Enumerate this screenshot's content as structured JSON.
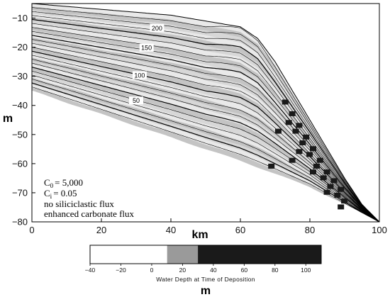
{
  "chart_data": {
    "type": "area",
    "title": "",
    "xlabel": "km",
    "ylabel": "m",
    "xlim": [
      0,
      100
    ],
    "ylim": [
      -80,
      -5
    ],
    "xticks": [
      "0",
      "20",
      "40",
      "60",
      "80",
      "100"
    ],
    "yticks": [
      "-10",
      "-20",
      "-30",
      "-40",
      "-50",
      "-60",
      "-70",
      "-80"
    ],
    "grid": false,
    "time_line_labels": [
      "200",
      "150",
      "100",
      "50"
    ],
    "surface": {
      "x": [
        0,
        10,
        20,
        30,
        40,
        45,
        50,
        55,
        60,
        65,
        70,
        75,
        80,
        85,
        90,
        95,
        100
      ],
      "y": [
        -5,
        -6,
        -7,
        -8,
        -9,
        -10,
        -11,
        -12,
        -13,
        -17,
        -25,
        -35,
        -45,
        -55,
        -65,
        -74,
        -80
      ]
    },
    "basement": {
      "x": [
        0,
        20,
        40,
        60,
        80,
        100
      ],
      "y": [
        -35,
        -43,
        -51,
        -59,
        -68,
        -80
      ]
    },
    "annotations": {
      "c0_symbol": "C",
      "c0_subscript": "0",
      "c0_value": "= 5,000",
      "ci_symbol": "C",
      "ci_subscript": "i",
      "ci_value": "= 0.05",
      "line3": "no siliciclastic flux",
      "line4": "enhanced carbonate flux"
    },
    "colorbar": {
      "title": "Water Depth at Time of Deposition",
      "unit": "m",
      "ticks": [
        "-40",
        "-20",
        "0",
        "20",
        "40",
        "60",
        "80",
        "100"
      ],
      "range": [
        -40,
        110
      ],
      "classes": [
        {
          "from": -40,
          "to": 10,
          "color": "#ffffff"
        },
        {
          "from": 10,
          "to": 30,
          "color": "#9a9a9a"
        },
        {
          "from": 30,
          "to": 110,
          "color": "#1a1a1a"
        }
      ]
    }
  }
}
